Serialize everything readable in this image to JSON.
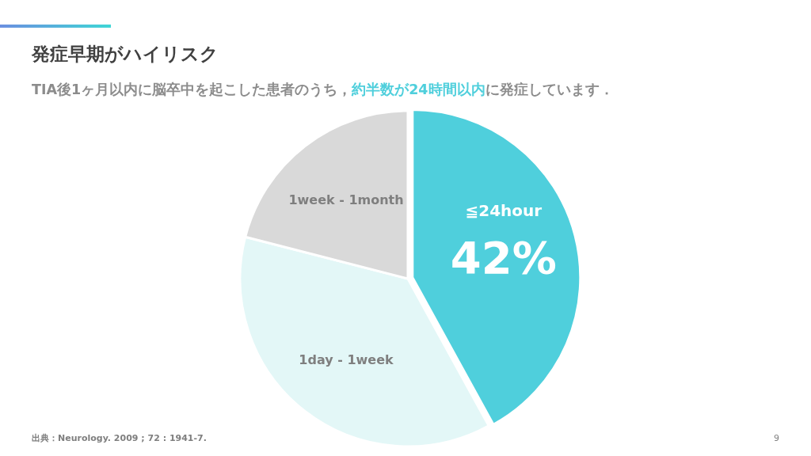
{
  "chart_data": {
    "type": "pie",
    "title": "発症早期がハイリスク",
    "subtitle": "TIA後1ヶ月以内に脳卒中を起こした患者のうち，**約半数が24時間以内**に発症しています．",
    "categories": [
      "≦24hour",
      "1day - 1week",
      "1week - 1month"
    ],
    "values": [
      42,
      37,
      21
    ],
    "colors": [
      "#4fcfdc",
      "#e3f7f7",
      "#d9d9d9"
    ],
    "value_labels": [
      "42%",
      null,
      null
    ],
    "annotations": [
      "出典：Neurology. 2009 ; 72 : 1941-7.",
      "9"
    ]
  }
}
